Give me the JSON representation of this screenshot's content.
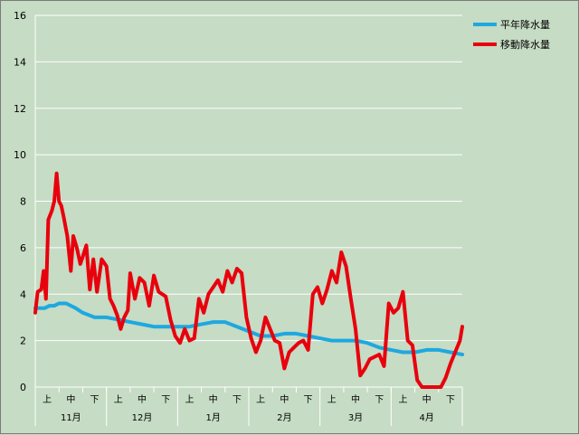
{
  "chart_data": {
    "type": "line",
    "title": "",
    "xlabel": "",
    "ylabel": "",
    "ylim": [
      0,
      16
    ],
    "yticks": [
      0,
      2,
      4,
      6,
      8,
      10,
      12,
      14,
      16
    ],
    "grid": true,
    "legend_position": "top-right",
    "background_color": "#c6dcc4",
    "months": [
      "11月",
      "12月",
      "1月",
      "2月",
      "3月",
      "4月"
    ],
    "decades": [
      "上",
      "中",
      "下"
    ],
    "series": [
      {
        "name": "平年降水量",
        "color": "#1ea8e0",
        "x": [
          0.0,
          0.2,
          0.4,
          0.6,
          0.8,
          1.0,
          1.3,
          1.7,
          2.0,
          2.5,
          3.0,
          3.5,
          4.0,
          4.5,
          5.0,
          5.5,
          6.0,
          6.5,
          7.0,
          7.5,
          8.0,
          8.5,
          9.0,
          9.5,
          10.0,
          10.5,
          11.0,
          11.5,
          12.0,
          12.5,
          13.0,
          13.5,
          14.0,
          14.5,
          15.0,
          15.5,
          16.0,
          16.5,
          17.0,
          17.5,
          18.0
        ],
        "y": [
          3.4,
          3.4,
          3.4,
          3.5,
          3.5,
          3.6,
          3.6,
          3.4,
          3.2,
          3.0,
          3.0,
          2.9,
          2.8,
          2.7,
          2.6,
          2.6,
          2.6,
          2.6,
          2.7,
          2.8,
          2.8,
          2.6,
          2.4,
          2.2,
          2.2,
          2.3,
          2.3,
          2.2,
          2.1,
          2.0,
          2.0,
          2.0,
          1.9,
          1.7,
          1.6,
          1.5,
          1.5,
          1.6,
          1.6,
          1.5,
          1.4
        ]
      },
      {
        "name": "移動降水量",
        "color": "#e8000d",
        "x": [
          0.0,
          0.1,
          0.25,
          0.35,
          0.45,
          0.55,
          0.7,
          0.8,
          0.9,
          1.0,
          1.1,
          1.2,
          1.35,
          1.5,
          1.6,
          1.75,
          1.9,
          2.0,
          2.15,
          2.3,
          2.45,
          2.6,
          2.8,
          3.0,
          3.15,
          3.3,
          3.45,
          3.6,
          3.75,
          3.9,
          4.0,
          4.2,
          4.4,
          4.6,
          4.8,
          5.0,
          5.2,
          5.5,
          5.7,
          5.9,
          6.1,
          6.3,
          6.5,
          6.7,
          6.9,
          7.1,
          7.3,
          7.5,
          7.7,
          7.9,
          8.1,
          8.3,
          8.5,
          8.7,
          8.9,
          9.1,
          9.3,
          9.5,
          9.7,
          9.9,
          10.1,
          10.3,
          10.5,
          10.7,
          10.9,
          11.1,
          11.3,
          11.5,
          11.7,
          11.9,
          12.1,
          12.3,
          12.5,
          12.7,
          12.9,
          13.1,
          13.3,
          13.5,
          13.7,
          13.9,
          14.1,
          14.3,
          14.5,
          14.7,
          14.9,
          15.1,
          15.3,
          15.5,
          15.7,
          15.9,
          16.1,
          16.3,
          16.5,
          16.7,
          16.9,
          17.1,
          17.3,
          17.5,
          17.7,
          17.9,
          18.0
        ],
        "y": [
          3.2,
          4.1,
          4.2,
          5.0,
          3.8,
          7.2,
          7.6,
          8.0,
          9.2,
          8.0,
          7.8,
          7.3,
          6.5,
          5.0,
          6.5,
          6.0,
          5.3,
          5.6,
          6.1,
          4.2,
          5.5,
          4.1,
          5.5,
          5.2,
          3.8,
          3.5,
          3.1,
          2.5,
          3.0,
          3.3,
          4.9,
          3.8,
          4.7,
          4.5,
          3.5,
          4.8,
          4.1,
          3.9,
          2.9,
          2.2,
          1.9,
          2.5,
          2.0,
          2.1,
          3.8,
          3.2,
          4.0,
          4.3,
          4.6,
          4.1,
          5.0,
          4.5,
          5.1,
          4.9,
          3.0,
          2.1,
          1.5,
          2.0,
          3.0,
          2.5,
          2.0,
          1.9,
          0.8,
          1.5,
          1.7,
          1.9,
          2.0,
          1.6,
          4.0,
          4.3,
          3.6,
          4.2,
          5.0,
          4.5,
          5.8,
          5.2,
          3.8,
          2.5,
          0.5,
          0.8,
          1.2,
          1.3,
          1.4,
          0.9,
          3.6,
          3.2,
          3.4,
          4.1,
          2.0,
          1.8,
          0.3,
          0.0,
          0.0,
          0.0,
          0.0,
          0.0,
          0.4,
          1.0,
          1.5,
          2.0,
          2.6
        ]
      }
    ]
  }
}
